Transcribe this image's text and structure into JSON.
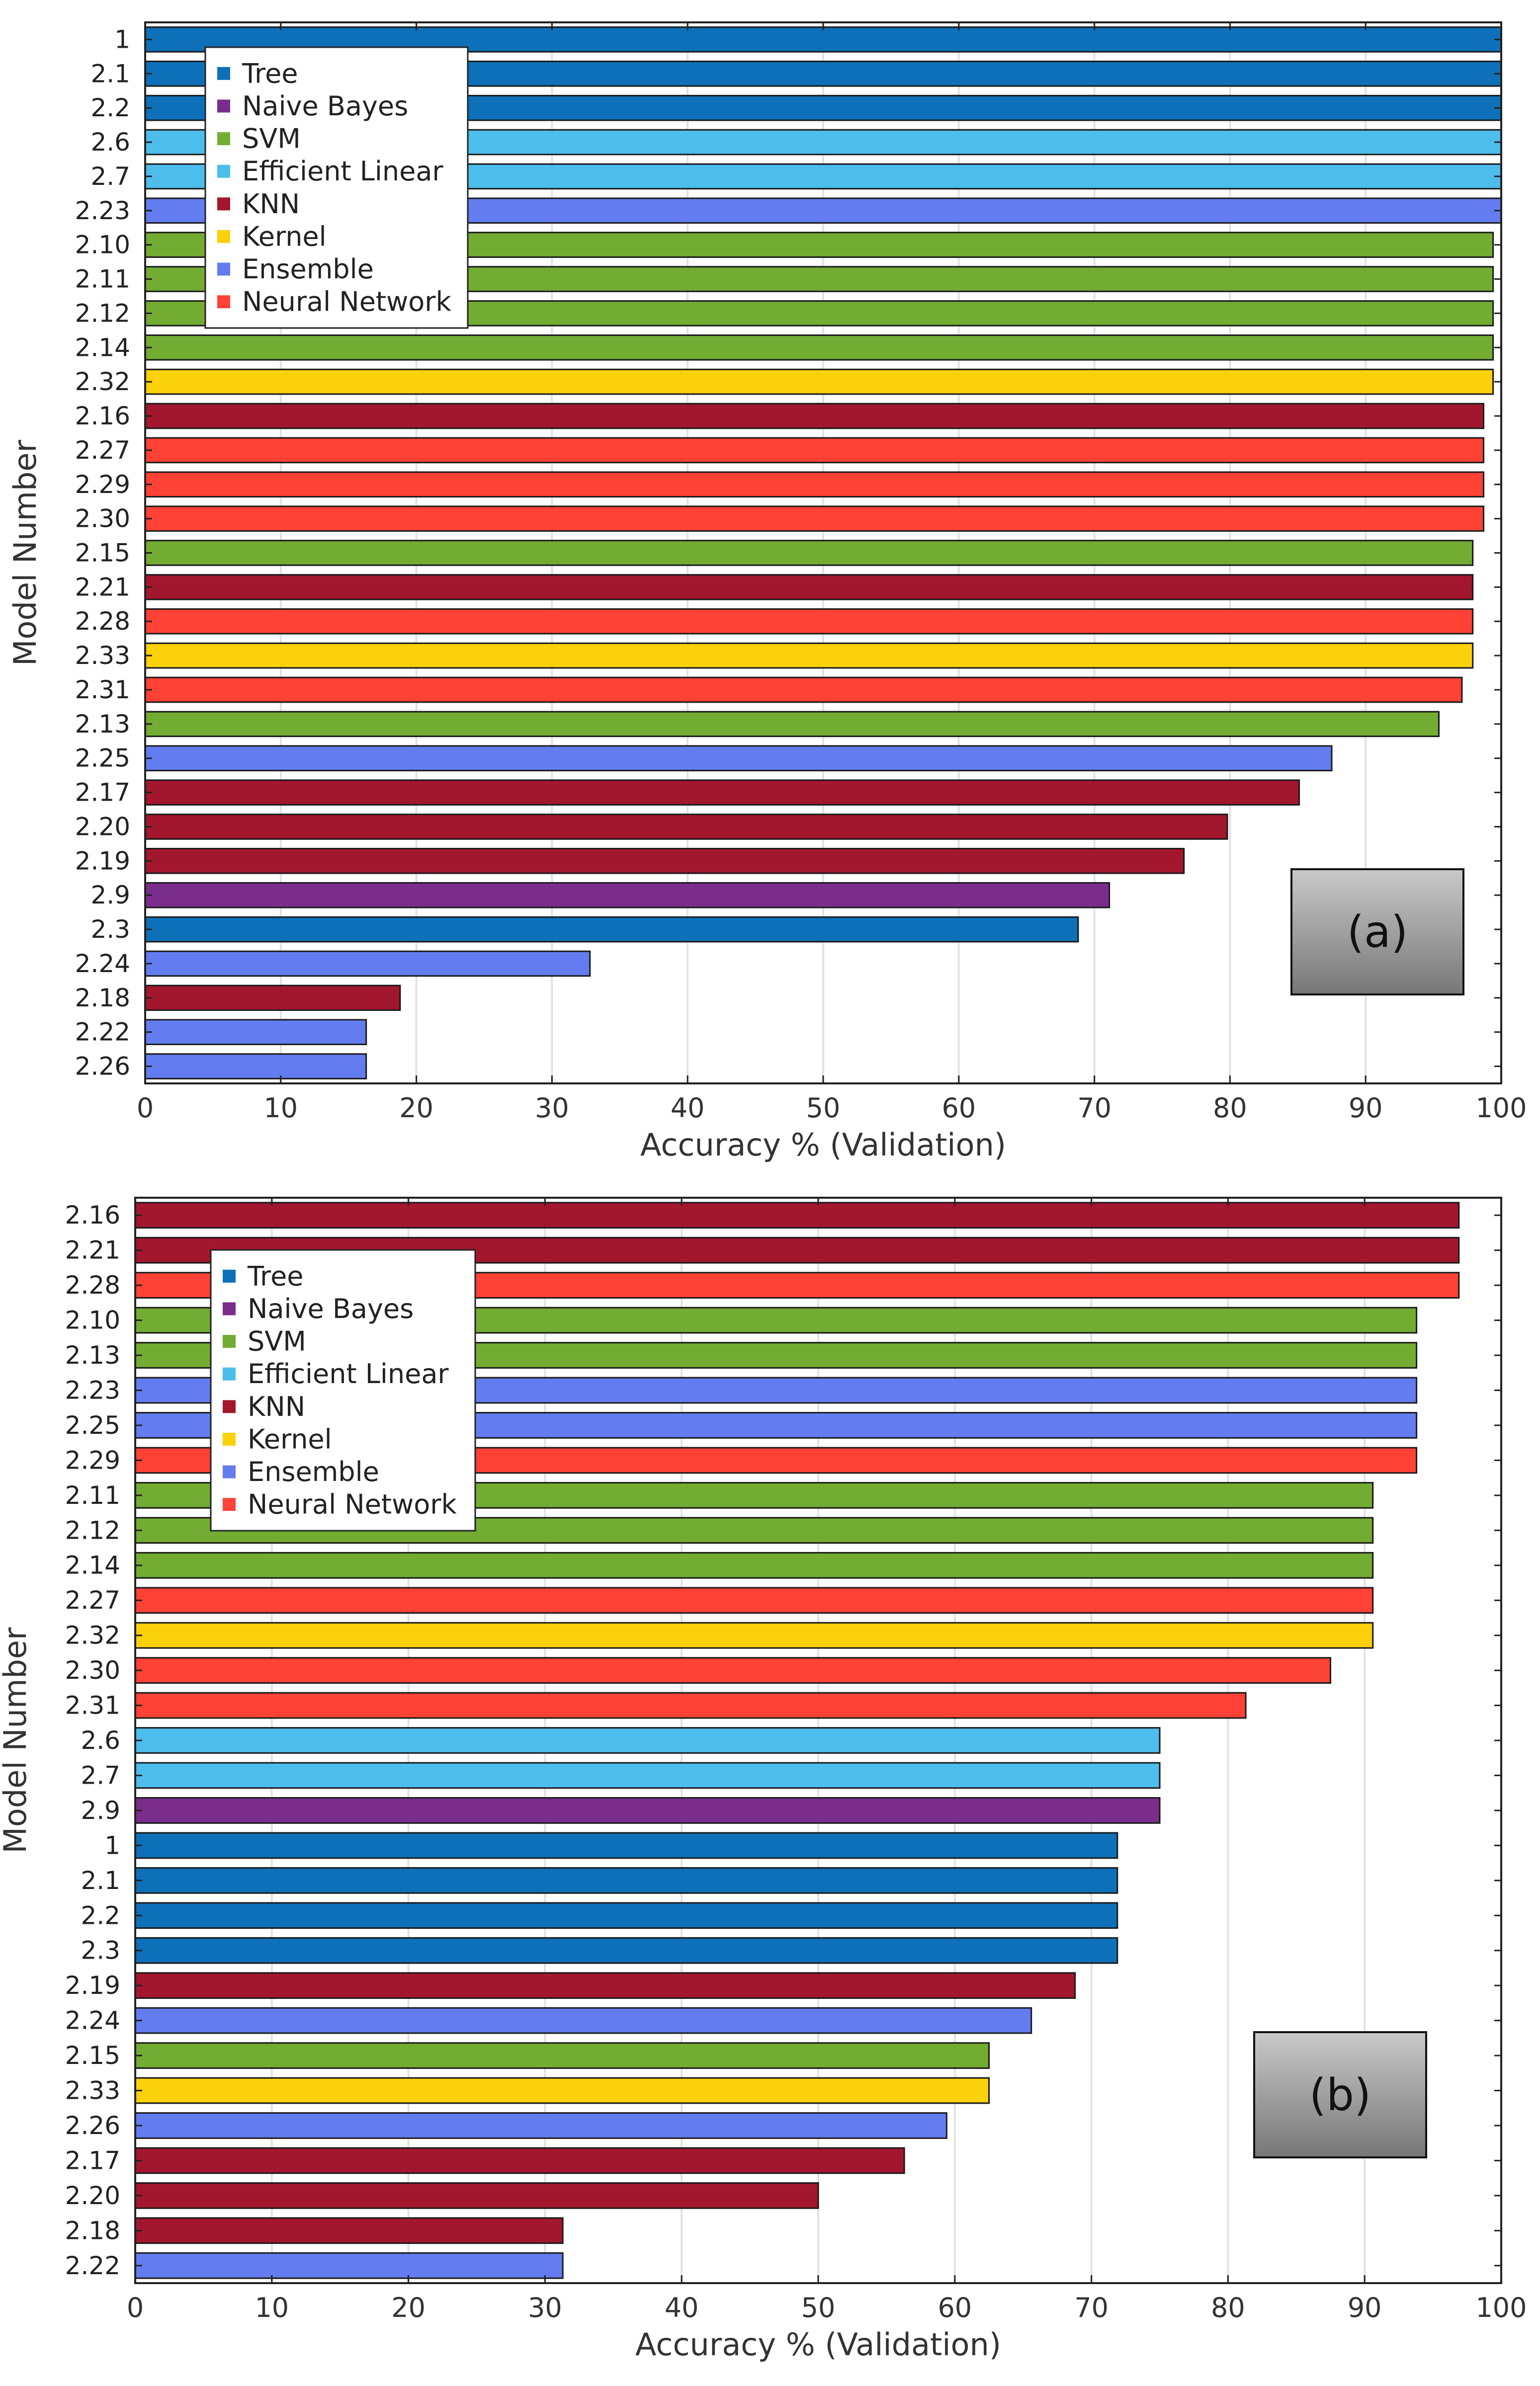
{
  "colors": {
    "Tree": "#0E70B8",
    "Naive Bayes": "#7B2D8C",
    "SVM": "#72AC32",
    "Efficient Linear": "#4DBDEB",
    "KNN": "#A3172E",
    "Kernel": "#FAD10A",
    "Ensemble": "#637DF0",
    "Neural Network": "#FF4136"
  },
  "chart_data": [
    {
      "type": "bar",
      "orientation": "horizontal",
      "panel_label": "(a)",
      "xlabel": "Accuracy % (Validation)",
      "ylabel": "Model Number",
      "xlim": [
        0,
        100
      ],
      "xticks": [
        "0",
        "10",
        "20",
        "30",
        "40",
        "50",
        "60",
        "70",
        "80",
        "90",
        "100"
      ],
      "grid": "vertical",
      "legend_position": "top-left",
      "legend": [
        "Tree",
        "Naive Bayes",
        "SVM",
        "Efficient Linear",
        "KNN",
        "Kernel",
        "Ensemble",
        "Neural Network"
      ],
      "bars": [
        {
          "label": "1",
          "value": 100,
          "type": "Tree"
        },
        {
          "label": "2.1",
          "value": 100,
          "type": "Tree"
        },
        {
          "label": "2.2",
          "value": 100,
          "type": "Tree"
        },
        {
          "label": "2.6",
          "value": 100,
          "type": "Efficient Linear"
        },
        {
          "label": "2.7",
          "value": 100,
          "type": "Efficient Linear"
        },
        {
          "label": "2.23",
          "value": 100,
          "type": "Ensemble"
        },
        {
          "label": "2.10",
          "value": 99.4,
          "type": "SVM"
        },
        {
          "label": "2.11",
          "value": 99.4,
          "type": "SVM"
        },
        {
          "label": "2.12",
          "value": 99.4,
          "type": "SVM"
        },
        {
          "label": "2.14",
          "value": 99.4,
          "type": "SVM"
        },
        {
          "label": "2.32",
          "value": 99.4,
          "type": "Kernel"
        },
        {
          "label": "2.16",
          "value": 98.7,
          "type": "KNN"
        },
        {
          "label": "2.27",
          "value": 98.7,
          "type": "Neural Network"
        },
        {
          "label": "2.29",
          "value": 98.7,
          "type": "Neural Network"
        },
        {
          "label": "2.30",
          "value": 98.7,
          "type": "Neural Network"
        },
        {
          "label": "2.15",
          "value": 97.9,
          "type": "SVM"
        },
        {
          "label": "2.21",
          "value": 97.9,
          "type": "KNN"
        },
        {
          "label": "2.28",
          "value": 97.9,
          "type": "Neural Network"
        },
        {
          "label": "2.33",
          "value": 97.9,
          "type": "Kernel"
        },
        {
          "label": "2.31",
          "value": 97.1,
          "type": "Neural Network"
        },
        {
          "label": "2.13",
          "value": 95.4,
          "type": "SVM"
        },
        {
          "label": "2.25",
          "value": 87.5,
          "type": "Ensemble"
        },
        {
          "label": "2.17",
          "value": 85.1,
          "type": "KNN"
        },
        {
          "label": "2.20",
          "value": 79.8,
          "type": "KNN"
        },
        {
          "label": "2.19",
          "value": 76.6,
          "type": "KNN"
        },
        {
          "label": "2.9",
          "value": 71.1,
          "type": "Naive Bayes"
        },
        {
          "label": "2.3",
          "value": 68.8,
          "type": "Tree"
        },
        {
          "label": "2.24",
          "value": 32.8,
          "type": "Ensemble"
        },
        {
          "label": "2.18",
          "value": 18.8,
          "type": "KNN"
        },
        {
          "label": "2.22",
          "value": 16.3,
          "type": "Ensemble"
        },
        {
          "label": "2.26",
          "value": 16.3,
          "type": "Ensemble"
        }
      ]
    },
    {
      "type": "bar",
      "orientation": "horizontal",
      "panel_label": "(b)",
      "xlabel": "Accuracy % (Validation)",
      "ylabel": "Model Number",
      "xlim": [
        0,
        100
      ],
      "xticks": [
        "0",
        "10",
        "20",
        "30",
        "40",
        "50",
        "60",
        "70",
        "80",
        "90",
        "100"
      ],
      "grid": "vertical",
      "legend_position": "top-left",
      "legend": [
        "Tree",
        "Naive Bayes",
        "SVM",
        "Efficient Linear",
        "KNN",
        "Kernel",
        "Ensemble",
        "Neural Network"
      ],
      "bars": [
        {
          "label": "2.16",
          "value": 96.9,
          "type": "KNN"
        },
        {
          "label": "2.21",
          "value": 96.9,
          "type": "KNN"
        },
        {
          "label": "2.28",
          "value": 96.9,
          "type": "Neural Network"
        },
        {
          "label": "2.10",
          "value": 93.8,
          "type": "SVM"
        },
        {
          "label": "2.13",
          "value": 93.8,
          "type": "SVM"
        },
        {
          "label": "2.23",
          "value": 93.8,
          "type": "Ensemble"
        },
        {
          "label": "2.25",
          "value": 93.8,
          "type": "Ensemble"
        },
        {
          "label": "2.29",
          "value": 93.8,
          "type": "Neural Network"
        },
        {
          "label": "2.11",
          "value": 90.6,
          "type": "SVM"
        },
        {
          "label": "2.12",
          "value": 90.6,
          "type": "SVM"
        },
        {
          "label": "2.14",
          "value": 90.6,
          "type": "SVM"
        },
        {
          "label": "2.27",
          "value": 90.6,
          "type": "Neural Network"
        },
        {
          "label": "2.32",
          "value": 90.6,
          "type": "Kernel"
        },
        {
          "label": "2.30",
          "value": 87.5,
          "type": "Neural Network"
        },
        {
          "label": "2.31",
          "value": 81.3,
          "type": "Neural Network"
        },
        {
          "label": "2.6",
          "value": 75.0,
          "type": "Efficient Linear"
        },
        {
          "label": "2.7",
          "value": 75.0,
          "type": "Efficient Linear"
        },
        {
          "label": "2.9",
          "value": 75.0,
          "type": "Naive Bayes"
        },
        {
          "label": "1",
          "value": 71.9,
          "type": "Tree"
        },
        {
          "label": "2.1",
          "value": 71.9,
          "type": "Tree"
        },
        {
          "label": "2.2",
          "value": 71.9,
          "type": "Tree"
        },
        {
          "label": "2.3",
          "value": 71.9,
          "type": "Tree"
        },
        {
          "label": "2.19",
          "value": 68.8,
          "type": "KNN"
        },
        {
          "label": "2.24",
          "value": 65.6,
          "type": "Ensemble"
        },
        {
          "label": "2.15",
          "value": 62.5,
          "type": "SVM"
        },
        {
          "label": "2.33",
          "value": 62.5,
          "type": "Kernel"
        },
        {
          "label": "2.26",
          "value": 59.4,
          "type": "Ensemble"
        },
        {
          "label": "2.17",
          "value": 56.3,
          "type": "KNN"
        },
        {
          "label": "2.20",
          "value": 50.0,
          "type": "KNN"
        },
        {
          "label": "2.18",
          "value": 31.3,
          "type": "KNN"
        },
        {
          "label": "2.22",
          "value": 31.3,
          "type": "Ensemble"
        }
      ]
    }
  ]
}
